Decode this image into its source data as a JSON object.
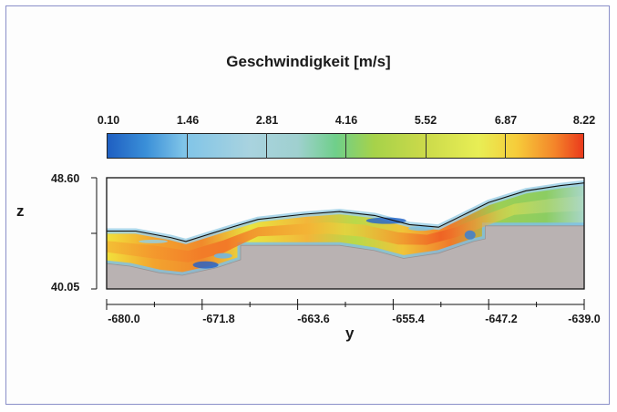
{
  "chart_data": {
    "type": "heatmap",
    "title": "Geschwindigkeit [m/s]",
    "colorbar": {
      "ticks": [
        "0.10",
        "1.46",
        "2.81",
        "4.16",
        "5.52",
        "6.87",
        "8.22"
      ],
      "range": [
        0.1,
        8.22
      ],
      "colors": [
        "#1f5fc2",
        "#7fc4e8",
        "#a9d3df",
        "#6fcf8a",
        "#c9d94a",
        "#e8ee55",
        "#f4852a",
        "#ea3a1c"
      ]
    },
    "xlabel": "y",
    "ylabel": "z",
    "xlim": [
      -680.0,
      -639.0
    ],
    "ylim": [
      40.05,
      48.6
    ],
    "x_ticks": [
      "-680.0",
      "-671.8",
      "-663.6",
      "-655.4",
      "-647.2",
      "-639.0"
    ],
    "y_ticks": [
      "48.60",
      "40.05"
    ],
    "x_tick_values": [
      -680.0,
      -671.8,
      -663.6,
      -655.4,
      -647.2,
      -639.0
    ],
    "water_surface": [
      [
        -680.0,
        44.5
      ],
      [
        -677.5,
        44.5
      ],
      [
        -674.5,
        44.0
      ],
      [
        -673.2,
        43.7
      ],
      [
        -670.0,
        44.6
      ],
      [
        -667.0,
        45.4
      ],
      [
        -663.0,
        45.8
      ],
      [
        -660.0,
        46.0
      ],
      [
        -657.0,
        45.7
      ],
      [
        -654.0,
        45.0
      ],
      [
        -651.5,
        44.8
      ],
      [
        -649.0,
        45.9
      ],
      [
        -647.2,
        46.7
      ],
      [
        -644.0,
        47.6
      ],
      [
        -641.0,
        48.0
      ],
      [
        -639.0,
        48.2
      ]
    ],
    "bed": [
      [
        -680.0,
        42.0
      ],
      [
        -678.0,
        41.8
      ],
      [
        -675.5,
        41.3
      ],
      [
        -673.5,
        41.1
      ],
      [
        -670.5,
        41.7
      ],
      [
        -668.5,
        42.3
      ],
      [
        -668.5,
        43.4
      ],
      [
        -660.0,
        43.4
      ],
      [
        -657.0,
        43.0
      ],
      [
        -654.5,
        42.4
      ],
      [
        -651.5,
        42.8
      ],
      [
        -648.5,
        43.7
      ],
      [
        -647.5,
        43.9
      ],
      [
        -647.5,
        44.9
      ],
      [
        -639.0,
        44.9
      ]
    ],
    "colors": {
      "ground": "#b9b2b2",
      "frame": "#8a8fc8"
    }
  }
}
